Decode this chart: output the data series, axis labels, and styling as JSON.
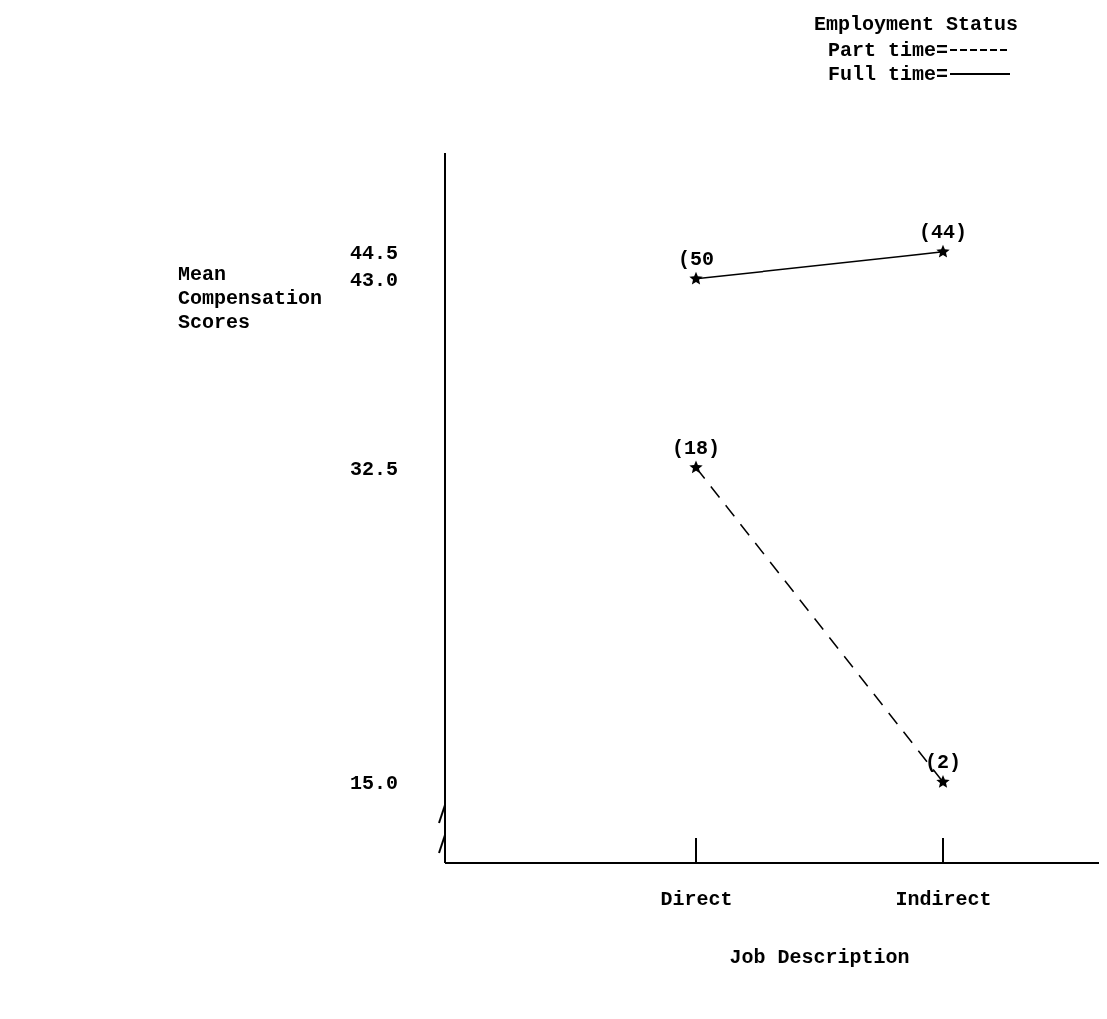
{
  "chart_data": {
    "type": "line",
    "xlabel": "Job Description",
    "ylabel": "Mean Compensation Scores",
    "legend_title": "Employment Status",
    "legend": "top right",
    "marker": "star",
    "grid": false,
    "categories": [
      "Direct",
      "Indirect"
    ],
    "ylim": [
      10.5,
      50
    ],
    "yticks": [
      {
        "value": 15,
        "label": "15.0"
      },
      32.5,
      {
        "value": 43,
        "label": "43.0"
      },
      44.5
    ],
    "annotations": [
      {
        "text": "(18)",
        "x": "Direct",
        "y": 32.5
      },
      {
        "text": "(2)",
        "x": "Indirect",
        "y": 15
      },
      {
        "text": "(50",
        "x": "Direct",
        "y": 43
      },
      {
        "text": "(44)",
        "x": "Indirect",
        "y": 44.5
      }
    ],
    "series": [
      {
        "name": "Part time=",
        "color": "#000000",
        "line_style": "dashed",
        "values": [
          32.5,
          15.0
        ]
      },
      {
        "name": "Full time=",
        "color": "#000000",
        "line_style": "solid",
        "values": [
          43.0,
          44.5
        ]
      }
    ]
  }
}
